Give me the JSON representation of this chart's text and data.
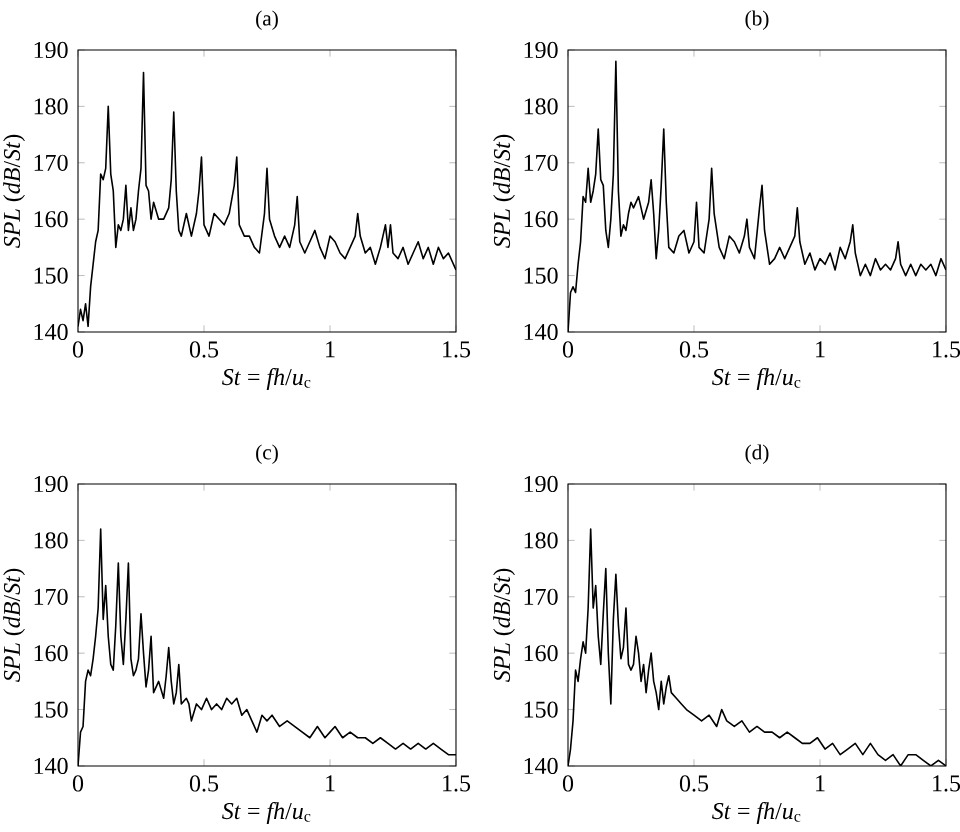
{
  "chart_data": [
    {
      "type": "line",
      "title": "(a)",
      "xlabel": "*St* = *fh*/*u*$_{c}$",
      "ylabel": "*SPL* (*dB*/*St*)",
      "color": "#000000",
      "xlim": [
        0,
        1.5
      ],
      "ylim": [
        140,
        190
      ],
      "xticks": [
        0,
        0.5,
        1,
        1.5
      ],
      "yticks": [
        140,
        150,
        160,
        170,
        180,
        190
      ],
      "x": [
        0,
        0.01,
        0.02,
        0.03,
        0.04,
        0.05,
        0.07,
        0.08,
        0.09,
        0.1,
        0.11,
        0.12,
        0.13,
        0.14,
        0.15,
        0.16,
        0.17,
        0.18,
        0.19,
        0.2,
        0.21,
        0.22,
        0.23,
        0.24,
        0.25,
        0.26,
        0.27,
        0.28,
        0.29,
        0.3,
        0.32,
        0.34,
        0.36,
        0.37,
        0.38,
        0.39,
        0.4,
        0.41,
        0.43,
        0.45,
        0.47,
        0.48,
        0.49,
        0.5,
        0.52,
        0.54,
        0.56,
        0.58,
        0.6,
        0.62,
        0.63,
        0.64,
        0.66,
        0.68,
        0.7,
        0.72,
        0.74,
        0.75,
        0.76,
        0.78,
        0.8,
        0.82,
        0.84,
        0.86,
        0.87,
        0.88,
        0.9,
        0.92,
        0.94,
        0.96,
        0.98,
        1.0,
        1.02,
        1.04,
        1.06,
        1.08,
        1.1,
        1.11,
        1.12,
        1.14,
        1.16,
        1.18,
        1.2,
        1.22,
        1.23,
        1.24,
        1.25,
        1.27,
        1.29,
        1.31,
        1.33,
        1.35,
        1.37,
        1.39,
        1.41,
        1.43,
        1.45,
        1.47,
        1.5
      ],
      "values": [
        141,
        144,
        142,
        145,
        141,
        148,
        156,
        158,
        168,
        167,
        169,
        180,
        168,
        165,
        155,
        159,
        158,
        160,
        166,
        158,
        162,
        158,
        160,
        165,
        169,
        186,
        166,
        165,
        160,
        163,
        160,
        160,
        162,
        167,
        179,
        165,
        158,
        157,
        161,
        157,
        161,
        165,
        171,
        159,
        157,
        161,
        160,
        159,
        161,
        166,
        171,
        159,
        157,
        157,
        155,
        154,
        161,
        169,
        160,
        157,
        155,
        157,
        155,
        159,
        164,
        156,
        154,
        156,
        158,
        155,
        153,
        157,
        156,
        154,
        153,
        155,
        157,
        161,
        157,
        154,
        155,
        152,
        155,
        159,
        155,
        159,
        154,
        153,
        155,
        152,
        154,
        156,
        153,
        155,
        152,
        155,
        153,
        154,
        151
      ]
    },
    {
      "type": "line",
      "title": "(b)",
      "xlabel": "*St* = *fh*/*u*$_{c}$",
      "ylabel": "*SPL* (*dB*/*St*)",
      "color": "#000000",
      "xlim": [
        0,
        1.5
      ],
      "ylim": [
        140,
        190
      ],
      "xticks": [
        0,
        0.5,
        1,
        1.5
      ],
      "yticks": [
        140,
        150,
        160,
        170,
        180,
        190
      ],
      "x": [
        0,
        0.01,
        0.02,
        0.03,
        0.04,
        0.05,
        0.06,
        0.07,
        0.08,
        0.09,
        0.1,
        0.11,
        0.12,
        0.13,
        0.14,
        0.15,
        0.16,
        0.17,
        0.18,
        0.19,
        0.2,
        0.21,
        0.22,
        0.23,
        0.24,
        0.25,
        0.26,
        0.28,
        0.3,
        0.32,
        0.33,
        0.34,
        0.35,
        0.36,
        0.37,
        0.38,
        0.39,
        0.4,
        0.42,
        0.44,
        0.46,
        0.48,
        0.5,
        0.51,
        0.52,
        0.54,
        0.56,
        0.57,
        0.58,
        0.6,
        0.62,
        0.64,
        0.66,
        0.68,
        0.7,
        0.71,
        0.72,
        0.74,
        0.76,
        0.77,
        0.78,
        0.8,
        0.82,
        0.84,
        0.86,
        0.88,
        0.9,
        0.91,
        0.92,
        0.94,
        0.96,
        0.98,
        1.0,
        1.02,
        1.04,
        1.06,
        1.08,
        1.1,
        1.12,
        1.13,
        1.14,
        1.16,
        1.18,
        1.2,
        1.22,
        1.24,
        1.26,
        1.28,
        1.3,
        1.31,
        1.32,
        1.34,
        1.36,
        1.38,
        1.4,
        1.42,
        1.44,
        1.46,
        1.48,
        1.5
      ],
      "values": [
        140,
        147,
        148,
        147,
        152,
        156,
        164,
        163,
        169,
        163,
        165,
        168,
        176,
        167,
        166,
        158,
        155,
        160,
        168,
        188,
        165,
        157,
        159,
        158,
        161,
        163,
        162,
        164,
        160,
        163,
        167,
        161,
        153,
        158,
        166,
        176,
        163,
        155,
        154,
        157,
        158,
        154,
        156,
        163,
        155,
        154,
        160,
        169,
        161,
        155,
        153,
        157,
        156,
        154,
        157,
        160,
        155,
        153,
        162,
        166,
        158,
        152,
        153,
        155,
        153,
        155,
        157,
        162,
        156,
        152,
        154,
        151,
        153,
        152,
        154,
        151,
        155,
        153,
        156,
        159,
        154,
        150,
        152,
        150,
        153,
        151,
        152,
        151,
        153,
        156,
        152,
        150,
        152,
        150,
        152,
        151,
        152,
        150,
        153,
        151
      ]
    },
    {
      "type": "line",
      "title": "(c)",
      "xlabel": "*St* = *fh*/*u*$_{c}$",
      "ylabel": "*SPL* (*dB*/*St*)",
      "color": "#000000",
      "xlim": [
        0,
        1.5
      ],
      "ylim": [
        140,
        190
      ],
      "xticks": [
        0,
        0.5,
        1,
        1.5
      ],
      "yticks": [
        140,
        150,
        160,
        170,
        180,
        190
      ],
      "x": [
        0,
        0.01,
        0.02,
        0.03,
        0.04,
        0.05,
        0.06,
        0.07,
        0.08,
        0.09,
        0.1,
        0.11,
        0.12,
        0.13,
        0.14,
        0.15,
        0.16,
        0.17,
        0.18,
        0.19,
        0.2,
        0.21,
        0.22,
        0.23,
        0.24,
        0.25,
        0.26,
        0.27,
        0.28,
        0.29,
        0.3,
        0.32,
        0.34,
        0.35,
        0.36,
        0.37,
        0.38,
        0.39,
        0.4,
        0.41,
        0.43,
        0.44,
        0.45,
        0.47,
        0.49,
        0.51,
        0.53,
        0.55,
        0.57,
        0.59,
        0.61,
        0.63,
        0.65,
        0.67,
        0.69,
        0.71,
        0.73,
        0.75,
        0.77,
        0.8,
        0.83,
        0.86,
        0.89,
        0.92,
        0.95,
        0.98,
        1.0,
        1.02,
        1.05,
        1.08,
        1.11,
        1.14,
        1.17,
        1.2,
        1.23,
        1.26,
        1.29,
        1.32,
        1.35,
        1.38,
        1.41,
        1.44,
        1.47,
        1.5
      ],
      "values": [
        140,
        146,
        147,
        155,
        157,
        156,
        159,
        163,
        168,
        182,
        166,
        172,
        163,
        158,
        157,
        165,
        176,
        163,
        158,
        166,
        176,
        159,
        156,
        157,
        159,
        167,
        160,
        154,
        157,
        163,
        153,
        155,
        152,
        156,
        161,
        155,
        151,
        153,
        158,
        151,
        152,
        151,
        148,
        151,
        150,
        152,
        150,
        151,
        150,
        152,
        151,
        152,
        149,
        150,
        148,
        146,
        149,
        148,
        149,
        147,
        148,
        147,
        146,
        145,
        147,
        145,
        146,
        147,
        145,
        146,
        145,
        145,
        144,
        145,
        144,
        143,
        144,
        143,
        144,
        143,
        144,
        143,
        142,
        142
      ]
    },
    {
      "type": "line",
      "title": "(d)",
      "xlabel": "*St* = *fh*/*u*$_{c}$",
      "ylabel": "*SPL* (*dB*/*St*)",
      "color": "#000000",
      "xlim": [
        0,
        1.5
      ],
      "ylim": [
        140,
        190
      ],
      "xticks": [
        0,
        0.5,
        1,
        1.5
      ],
      "yticks": [
        140,
        150,
        160,
        170,
        180,
        190
      ],
      "x": [
        0,
        0.01,
        0.02,
        0.03,
        0.04,
        0.05,
        0.06,
        0.07,
        0.08,
        0.09,
        0.1,
        0.11,
        0.12,
        0.13,
        0.14,
        0.15,
        0.16,
        0.17,
        0.18,
        0.19,
        0.2,
        0.21,
        0.22,
        0.23,
        0.24,
        0.25,
        0.26,
        0.27,
        0.28,
        0.29,
        0.3,
        0.31,
        0.32,
        0.33,
        0.34,
        0.35,
        0.36,
        0.37,
        0.38,
        0.39,
        0.4,
        0.41,
        0.43,
        0.45,
        0.47,
        0.5,
        0.53,
        0.56,
        0.59,
        0.61,
        0.63,
        0.66,
        0.69,
        0.72,
        0.75,
        0.78,
        0.81,
        0.84,
        0.87,
        0.9,
        0.93,
        0.96,
        0.99,
        1.02,
        1.05,
        1.08,
        1.11,
        1.14,
        1.17,
        1.2,
        1.23,
        1.26,
        1.29,
        1.32,
        1.35,
        1.38,
        1.41,
        1.44,
        1.47,
        1.5
      ],
      "values": [
        140,
        143,
        148,
        157,
        155,
        159,
        162,
        160,
        168,
        182,
        168,
        172,
        163,
        158,
        167,
        175,
        160,
        151,
        166,
        174,
        165,
        159,
        161,
        168,
        158,
        157,
        158,
        163,
        160,
        155,
        158,
        153,
        157,
        160,
        155,
        153,
        150,
        155,
        151,
        154,
        156,
        153,
        152,
        151,
        150,
        149,
        148,
        149,
        147,
        150,
        148,
        147,
        148,
        146,
        147,
        146,
        146,
        145,
        146,
        145,
        144,
        144,
        145,
        143,
        144,
        142,
        143,
        144,
        142,
        144,
        142,
        141,
        142,
        140,
        142,
        142,
        141,
        140,
        141,
        140
      ]
    }
  ]
}
